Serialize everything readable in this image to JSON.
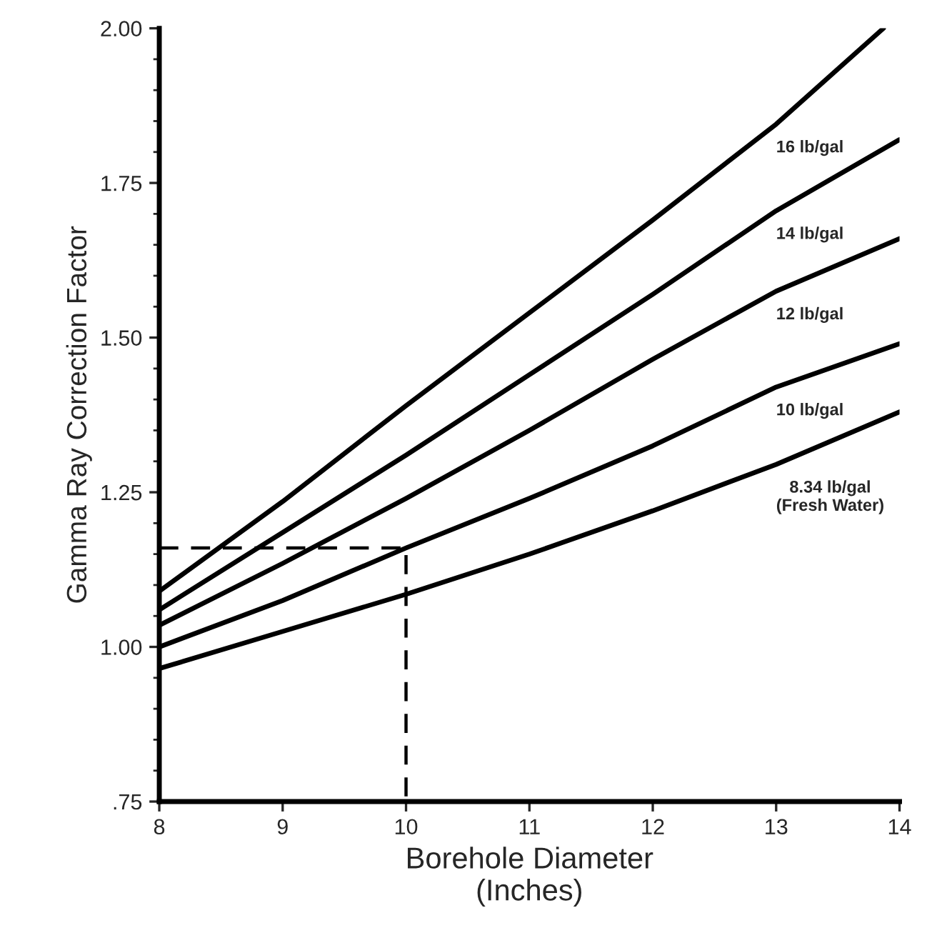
{
  "chart_data": {
    "type": "line",
    "xlabel": "Borehole Diameter\n(Inches)",
    "ylabel": "Gamma Ray Correction Factor",
    "xlim": [
      8,
      14
    ],
    "ylim": [
      0.75,
      2.0
    ],
    "xticks": [
      8,
      9,
      10,
      11,
      12,
      13,
      14
    ],
    "yticks": [
      {
        "value": 0.75,
        "label": ".75"
      },
      {
        "value": 1.0,
        "label": "1.00"
      },
      {
        "value": 1.25,
        "label": "1.25"
      },
      {
        "value": 1.5,
        "label": "1.50"
      },
      {
        "value": 1.75,
        "label": "1.75"
      },
      {
        "value": 2.0,
        "label": "2.00"
      }
    ],
    "grid": false,
    "legend": false,
    "marker": "none",
    "series": [
      {
        "name": "16 lb/gal",
        "color": "#000000",
        "x": [
          8,
          9,
          10,
          11,
          12,
          13,
          13.87
        ],
        "values": [
          1.09,
          1.235,
          1.39,
          1.54,
          1.69,
          1.845,
          2.0
        ]
      },
      {
        "name": "14 lb/gal",
        "color": "#000000",
        "x": [
          8,
          9,
          10,
          11,
          12,
          13,
          14
        ],
        "values": [
          1.06,
          1.185,
          1.31,
          1.44,
          1.57,
          1.705,
          1.82
        ]
      },
      {
        "name": "12 lb/gal",
        "color": "#000000",
        "x": [
          8,
          9,
          10,
          11,
          12,
          13,
          14
        ],
        "values": [
          1.035,
          1.135,
          1.24,
          1.35,
          1.465,
          1.575,
          1.66
        ]
      },
      {
        "name": "10 lb/gal",
        "color": "#000000",
        "x": [
          8,
          9,
          10,
          11,
          12,
          13,
          14
        ],
        "values": [
          1.0,
          1.075,
          1.16,
          1.24,
          1.325,
          1.42,
          1.49
        ]
      },
      {
        "name": "8.34 lb/gal\n(Fresh Water)",
        "color": "#000000",
        "x": [
          8,
          9,
          10,
          11,
          12,
          13,
          14
        ],
        "values": [
          0.965,
          1.025,
          1.085,
          1.15,
          1.22,
          1.295,
          1.38
        ]
      },
      {
        "color": "#000000",
        "line_style": "dashed",
        "x": [
          8,
          10,
          10
        ],
        "values": [
          1.16,
          1.16,
          0.75
        ]
      }
    ]
  }
}
